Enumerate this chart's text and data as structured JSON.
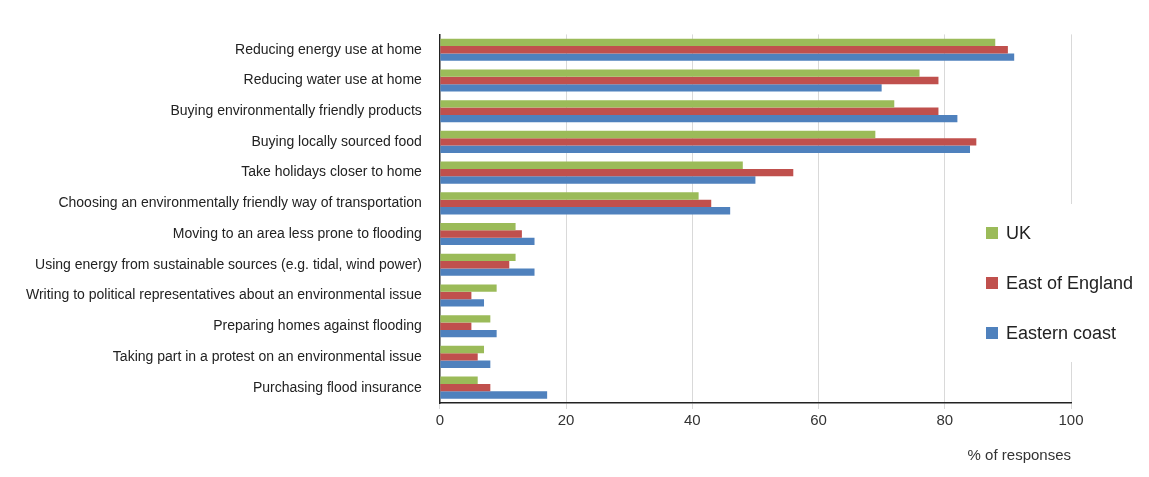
{
  "chart_data": {
    "type": "bar",
    "orientation": "horizontal",
    "xlabel": "% of responses",
    "categories": [
      "Reducing energy use at home",
      "Reducing water use at home",
      "Buying environmentally friendly products",
      "Buying locally sourced food",
      "Take holidays closer to home",
      "Choosing an environmentally friendly way of transportation",
      "Moving to an area less prone to flooding",
      "Using energy from sustainable sources (e.g. tidal, wind power)",
      "Writing to political representatives about an environmental issue",
      "Preparing homes against flooding",
      "Taking part in a protest on an environmental issue",
      "Purchasing flood insurance"
    ],
    "series": [
      {
        "name": "UK",
        "color": "#9bbb59",
        "values": [
          88,
          76,
          72,
          69,
          48,
          41,
          12,
          12,
          9,
          8,
          7,
          6
        ]
      },
      {
        "name": "East of England",
        "color": "#c0504d",
        "values": [
          90,
          79,
          79,
          85,
          56,
          43,
          13,
          11,
          5,
          5,
          6,
          8
        ]
      },
      {
        "name": "Eastern coast",
        "color": "#4f81bd",
        "values": [
          91,
          70,
          82,
          84,
          50,
          46,
          15,
          15,
          7,
          9,
          8,
          17
        ]
      }
    ],
    "xlim": [
      0,
      100
    ],
    "xticks": [
      0,
      20,
      40,
      60,
      80,
      100
    ],
    "grid": "x",
    "legend": "right"
  }
}
